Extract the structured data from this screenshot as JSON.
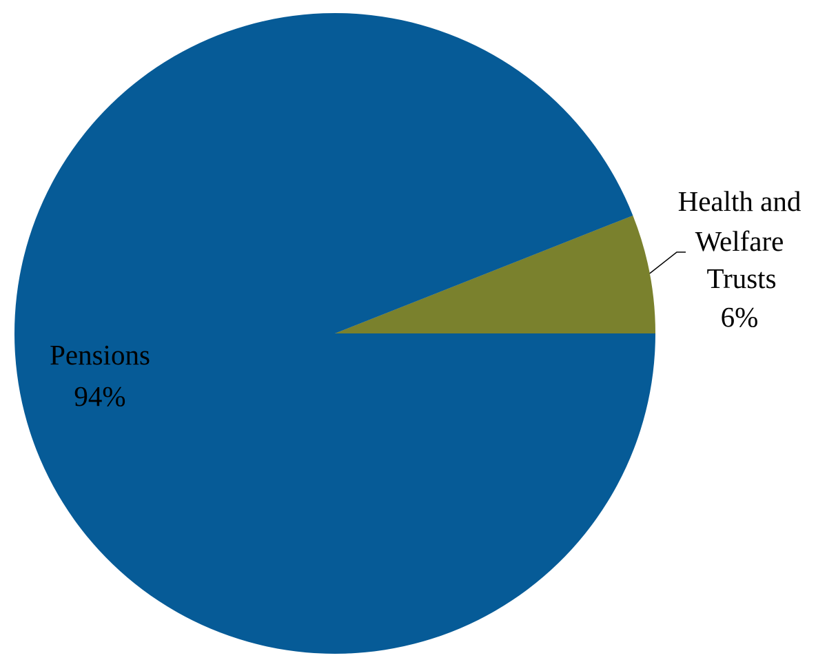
{
  "chart_data": {
    "type": "pie",
    "title": "",
    "slices": [
      {
        "name": "Health and Welfare Trusts",
        "label_lines": [
          "Health and",
          "Welfare",
          "Trusts"
        ],
        "value": 6,
        "value_label": "6%",
        "color": "#7a812d",
        "label_position": "outside-right",
        "leader_line": true
      },
      {
        "name": "Pensions",
        "label_lines": [
          "Pensions"
        ],
        "value": 94,
        "value_label": "94%",
        "color": "#065b97",
        "label_position": "inside-left",
        "leader_line": false
      }
    ],
    "legend": "none"
  }
}
